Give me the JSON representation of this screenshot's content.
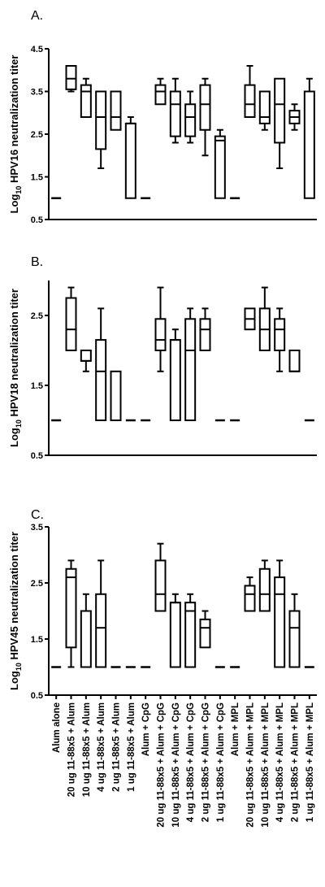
{
  "chart_data": {
    "type": "box",
    "categories": [
      "Alum alone",
      "20 ug 11-88x5 + Alum",
      "10 ug 11-88x5 + Alum",
      "4 ug 11-88x5 + Alum",
      "2 ug 11-88x5 + Alum",
      "1 ug 11-88x5 + Alum",
      "Alum + CpG",
      "20 ug 11-88x5 + Alum + CpG",
      "10 ug 11-88x5 + Alum + CpG",
      "4 ug 11-88x5 + Alum + CpG",
      "2 ug 11-88x5 + Alum + CpG",
      "1 ug 11-88x5 + Alum + CpG",
      "Alum + MPL",
      "20 ug 11-88x5 + Alum + MPL",
      "10 ug 11-88x5 + Alum + MPL",
      "4 ug 11-88x5 + Alum + MPL",
      "2 ug 11-88x5 + Alum + MPL",
      "1 ug 11-88x5 + Alum + MPL"
    ],
    "panels": [
      {
        "label": "A.",
        "ylabel_main": "Log",
        "ylabel_sub": "10",
        "ylabel_rest": " HPV16 neutralization titer",
        "ylim": [
          0.5,
          4.5
        ],
        "yticks": [
          "0.5",
          "1.5",
          "2.5",
          "3.5",
          "4.5"
        ],
        "ytick_values": [
          0.5,
          1.5,
          2.5,
          3.5,
          4.5
        ],
        "boxes": [
          [
            1,
            1,
            1,
            1,
            1
          ],
          [
            3.5,
            3.55,
            3.8,
            4.1,
            4.1
          ],
          [
            2.9,
            2.9,
            3.5,
            3.65,
            3.8
          ],
          [
            1.7,
            2.15,
            2.9,
            3.5,
            3.5
          ],
          [
            2.6,
            2.6,
            2.9,
            3.5,
            3.5
          ],
          [
            1,
            1,
            2.75,
            2.75,
            2.9
          ],
          [
            1,
            1,
            1,
            1,
            1
          ],
          [
            3.2,
            3.2,
            3.5,
            3.65,
            3.8
          ],
          [
            2.3,
            2.45,
            3.2,
            3.5,
            3.8
          ],
          [
            2.3,
            2.45,
            2.9,
            3.2,
            3.5
          ],
          [
            2,
            2.6,
            3.2,
            3.65,
            3.8
          ],
          [
            1,
            1,
            2.35,
            2.45,
            2.6
          ],
          [
            1,
            1,
            1,
            1,
            1
          ],
          [
            2.9,
            2.9,
            3.2,
            3.65,
            4.1
          ],
          [
            2.6,
            2.75,
            2.9,
            3.5,
            3.5
          ],
          [
            1.7,
            2.3,
            3.2,
            3.8,
            3.8
          ],
          [
            2.6,
            2.75,
            2.9,
            3.05,
            3.2
          ],
          [
            1,
            1,
            3.5,
            3.5,
            3.8
          ]
        ]
      },
      {
        "label": "B.",
        "ylabel_main": "Log",
        "ylabel_sub": "10",
        "ylabel_rest": " HPV18 neutralization titer",
        "ylim": [
          0.5,
          3.0
        ],
        "yticks": [
          "0.5",
          "1.5",
          "2.5"
        ],
        "ytick_values": [
          0.5,
          1.5,
          2.5
        ],
        "boxes": [
          [
            1,
            1,
            1,
            1,
            1
          ],
          [
            2,
            2,
            2.3,
            2.75,
            2.9
          ],
          [
            1.7,
            1.85,
            1.85,
            2,
            2
          ],
          [
            1,
            1,
            1.7,
            2.15,
            2.6
          ],
          [
            1,
            1,
            1,
            1.7,
            1.7
          ],
          [
            1,
            1,
            1,
            1,
            1
          ],
          [
            1,
            1,
            1,
            1,
            1
          ],
          [
            1.7,
            2,
            2.15,
            2.45,
            2.9
          ],
          [
            1,
            1,
            2.15,
            2.15,
            2.3
          ],
          [
            1,
            1,
            2,
            2.45,
            2.6
          ],
          [
            2,
            2,
            2.3,
            2.45,
            2.6
          ],
          [
            1,
            1,
            1,
            1,
            1
          ],
          [
            1,
            1,
            1,
            1,
            1
          ],
          [
            2.3,
            2.3,
            2.45,
            2.6,
            2.6
          ],
          [
            2,
            2,
            2.3,
            2.6,
            2.9
          ],
          [
            1.7,
            2,
            2.3,
            2.45,
            2.6
          ],
          [
            1.7,
            1.7,
            1.7,
            2,
            2
          ],
          [
            1,
            1,
            1,
            1,
            1
          ]
        ]
      },
      {
        "label": "C.",
        "ylabel_main": "Log",
        "ylabel_sub": "10",
        "ylabel_rest": " HPV45 neutralization titer",
        "ylim": [
          0.5,
          3.5
        ],
        "yticks": [
          "0.5",
          "1.5",
          "2.5",
          "3.5"
        ],
        "ytick_values": [
          0.5,
          1.5,
          2.5,
          3.5
        ],
        "boxes": [
          [
            1,
            1,
            1,
            1,
            1
          ],
          [
            1,
            1.35,
            2.6,
            2.75,
            2.9
          ],
          [
            1,
            1,
            2,
            2,
            2.3
          ],
          [
            1,
            1,
            1.7,
            2.3,
            2.9
          ],
          [
            1,
            1,
            1,
            1,
            1
          ],
          [
            1,
            1,
            1,
            1,
            1
          ],
          [
            1,
            1,
            1,
            1,
            1
          ],
          [
            2,
            2,
            2.3,
            2.9,
            3.2
          ],
          [
            1,
            1,
            2.15,
            2.15,
            2.3
          ],
          [
            1,
            1,
            2,
            2.15,
            2.3
          ],
          [
            1.35,
            1.35,
            1.7,
            1.85,
            2
          ],
          [
            1,
            1,
            1,
            1,
            1
          ],
          [
            1,
            1,
            1,
            1,
            1
          ],
          [
            2,
            2,
            2.3,
            2.45,
            2.6
          ],
          [
            2,
            2,
            2.3,
            2.75,
            2.9
          ],
          [
            1,
            1,
            2.3,
            2.6,
            2.9
          ],
          [
            1,
            1,
            1.7,
            2,
            2.3
          ],
          [
            1,
            1,
            1,
            1,
            1
          ]
        ]
      }
    ]
  }
}
